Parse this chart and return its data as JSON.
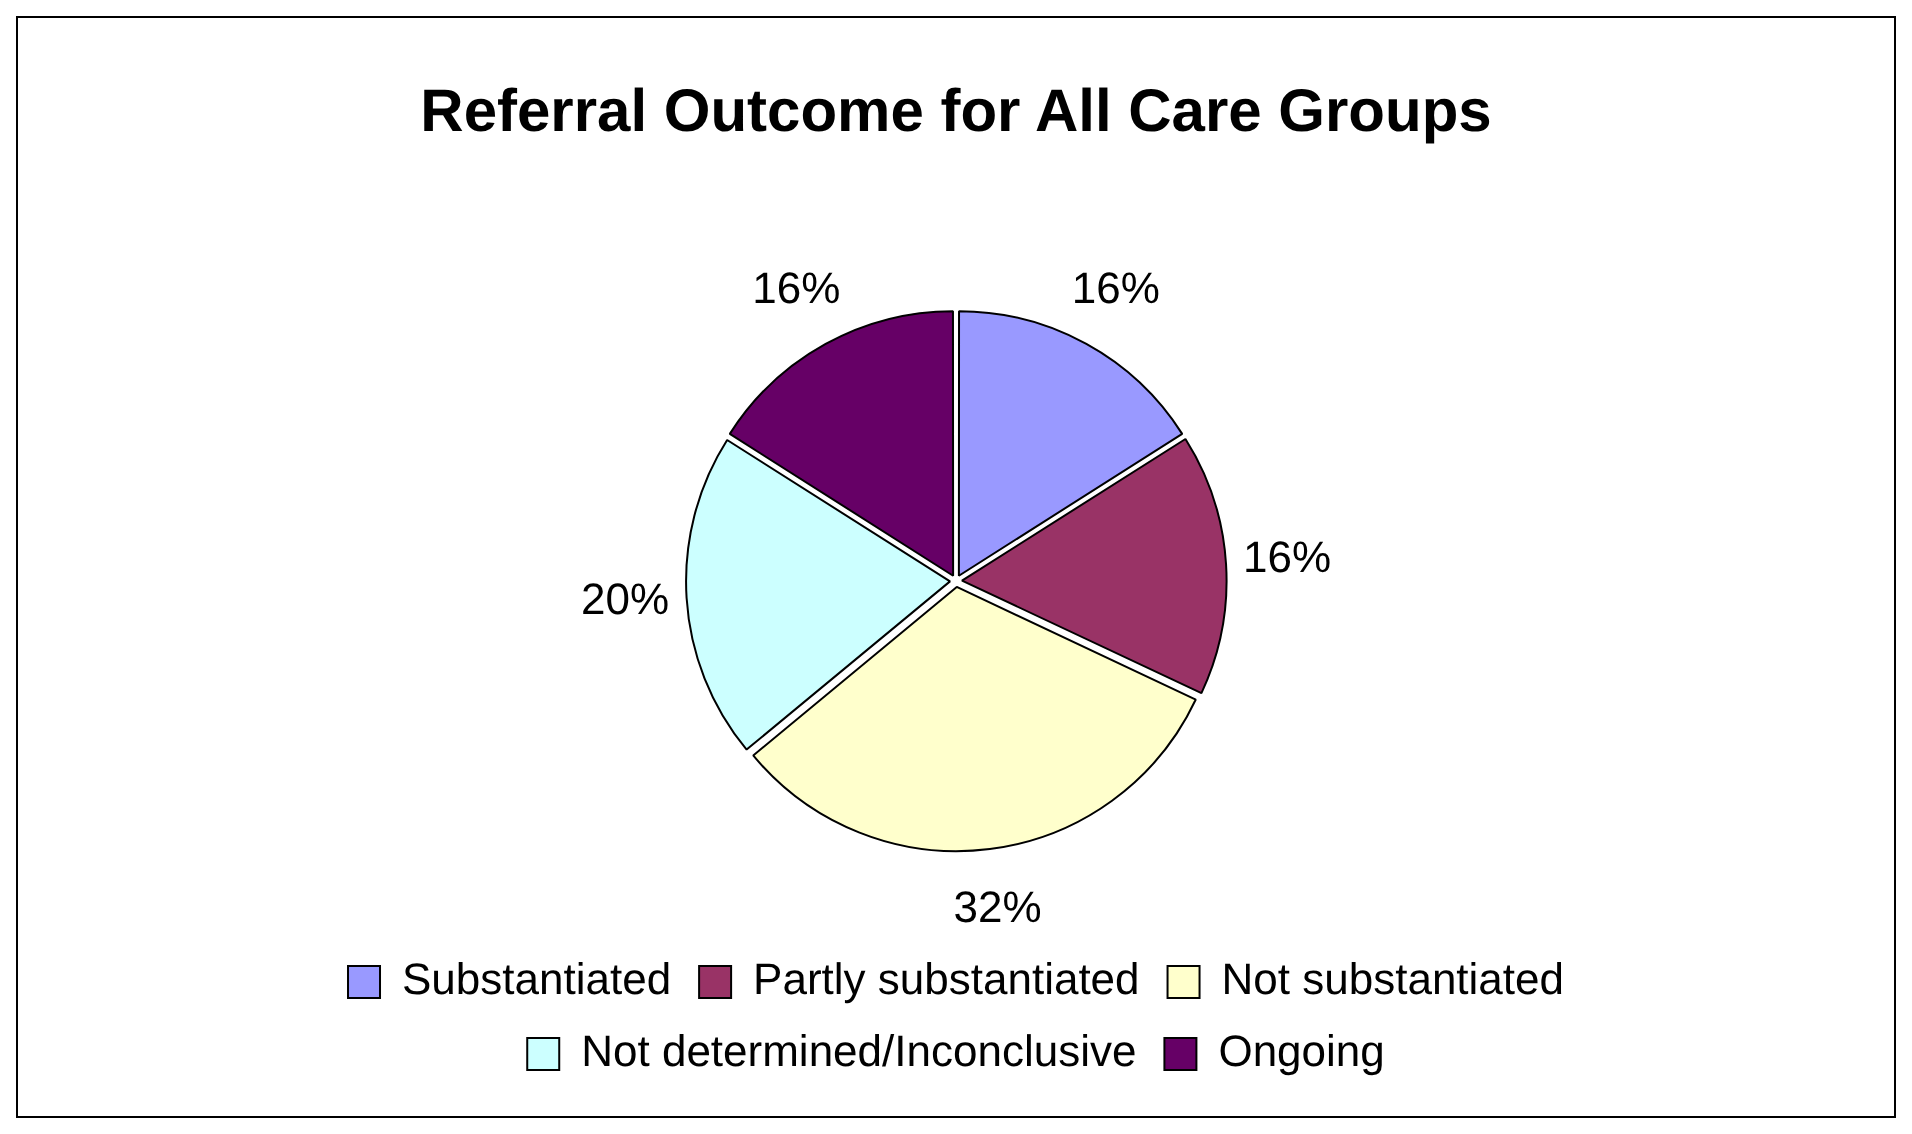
{
  "chart_data": {
    "type": "pie",
    "title": "Referral Outcome for All Care Groups",
    "categories": [
      "Substantiated",
      "Partly substantiated",
      "Not substantiated",
      "Not determined/Inconclusive",
      "Ongoing"
    ],
    "values": [
      16,
      16,
      32,
      20,
      16
    ],
    "colors": [
      "#9999ff",
      "#993366",
      "#ffffcc",
      "#ccffff",
      "#660066"
    ],
    "value_labels": [
      "16%",
      "16%",
      "32%",
      "20%",
      "16%"
    ],
    "legend": "bottom"
  }
}
